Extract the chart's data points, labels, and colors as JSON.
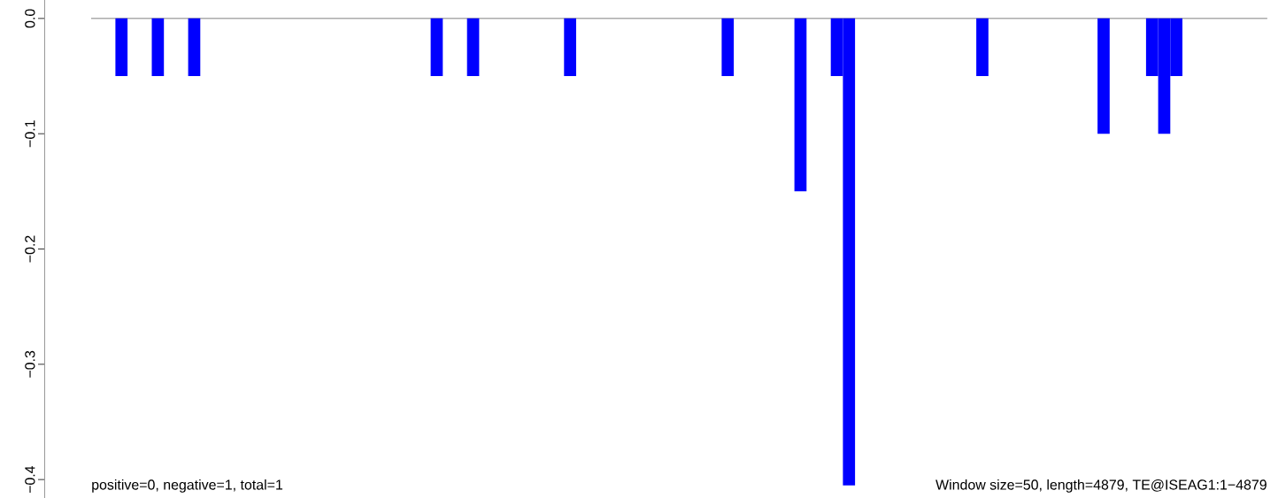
{
  "chart_data": {
    "type": "bar",
    "categories": [
      null,
      null,
      null,
      null,
      null,
      null,
      null,
      null,
      null,
      null,
      null,
      null,
      null,
      null,
      null,
      null,
      null,
      null,
      null,
      null,
      null,
      null,
      null,
      null,
      null,
      null,
      null,
      null,
      null,
      null,
      null,
      null,
      null,
      null,
      null,
      null,
      null,
      null,
      null,
      null,
      null,
      null,
      null,
      null,
      null,
      null,
      null,
      null,
      null,
      null,
      null,
      null,
      null,
      null,
      null,
      null,
      null,
      null,
      null,
      null,
      null,
      null,
      null,
      null,
      null,
      null,
      null,
      null,
      null,
      null,
      null,
      null,
      null,
      null,
      null,
      null,
      null,
      null,
      null,
      null,
      null,
      null,
      null,
      null,
      null,
      null,
      null,
      null,
      null,
      null,
      null,
      null,
      null,
      null,
      null,
      null,
      null
    ],
    "values": [
      0,
      0,
      -0.05,
      0,
      0,
      -0.05,
      0,
      0,
      -0.05,
      0,
      0,
      0,
      0,
      0,
      0,
      0,
      0,
      0,
      0,
      0,
      0,
      0,
      0,
      null,
      0,
      0,
      0,
      0,
      -0.05,
      0,
      0,
      -0.05,
      0,
      0,
      0,
      0,
      0,
      0,
      0,
      -0.05,
      0,
      0,
      0,
      0,
      0,
      0,
      0,
      0,
      0,
      0,
      0,
      0,
      -0.05,
      0,
      0,
      0,
      0,
      0,
      -0.15,
      0,
      0,
      -0.05,
      -0.405,
      0,
      0,
      0,
      0,
      0,
      0,
      0,
      0,
      0,
      0,
      -0.05,
      0,
      0,
      0,
      0,
      0,
      0,
      null,
      0,
      0,
      -0.1,
      0,
      0,
      0,
      -0.05,
      -0.1,
      -0.05,
      null,
      0,
      0,
      0,
      0,
      0,
      0
    ],
    "colors": [
      "#0000ff",
      "#0000ff",
      "#0000ff",
      "#0000ff",
      "#0000ff",
      "#0000ff",
      "#0000ff",
      "#0000ff",
      "#0000ff",
      "#0000ff",
      "#0000ff",
      "#0000ff",
      "#0000ff",
      "#0000ff",
      "#0000ff",
      "#0000ff",
      "#0000ff",
      "#0000ff",
      "#0000ff",
      "#0000ff",
      "#0000ff",
      "#0000ff",
      "#0000ff",
      "#ff0000",
      "#0000ff",
      "#0000ff",
      "#0000ff",
      "#0000ff",
      "#0000ff",
      "#0000ff",
      "#0000ff",
      "#0000ff",
      "#0000ff",
      "#0000ff",
      "#0000ff",
      "#0000ff",
      "#0000ff",
      "#0000ff",
      "#0000ff",
      "#0000ff",
      "#0000ff",
      "#0000ff",
      "#0000ff",
      "#0000ff",
      "#0000ff",
      "#0000ff",
      "#0000ff",
      "#0000ff",
      "#0000ff",
      "#0000ff",
      "#0000ff",
      "#0000ff",
      "#0000ff",
      "#0000ff",
      "#0000ff",
      "#0000ff",
      "#0000ff",
      "#0000ff",
      "#0000ff",
      "#0000ff",
      "#0000ff",
      "#0000ff",
      "#0000ff",
      "#0000ff",
      "#0000ff",
      "#0000ff",
      "#0000ff",
      "#0000ff",
      "#0000ff",
      "#0000ff",
      "#0000ff",
      "#0000ff",
      "#0000ff",
      "#0000ff",
      "#0000ff",
      "#0000ff",
      "#0000ff",
      "#0000ff",
      "#0000ff",
      "#0000ff",
      "#ff0000",
      "#0000ff",
      "#0000ff",
      "#0000ff",
      "#0000ff",
      "#0000ff",
      "#0000ff",
      "#0000ff",
      "#0000ff",
      "#0000ff",
      "#ff0000",
      "#0000ff",
      "#0000ff",
      "#0000ff",
      "#0000ff",
      "#0000ff",
      "#0000ff"
    ],
    "ylim": [
      -0.416,
      0.016
    ],
    "yticks": [
      {
        "value": 0,
        "label": "0.0"
      },
      {
        "value": -0.1,
        "label": "−0.1"
      },
      {
        "value": -0.2,
        "label": "−0.2"
      },
      {
        "value": -0.3,
        "label": "−0.3"
      },
      {
        "value": -0.4,
        "label": "−0.4"
      }
    ],
    "tick_labels": "y",
    "ref_lines": [
      {
        "axis": "y",
        "value": 0,
        "color": "#808080"
      }
    ],
    "annotations": [
      "positive=0, negative=1, total=1",
      "Window size=50, length=4879, TE@ISEAG1:1−4879"
    ]
  }
}
